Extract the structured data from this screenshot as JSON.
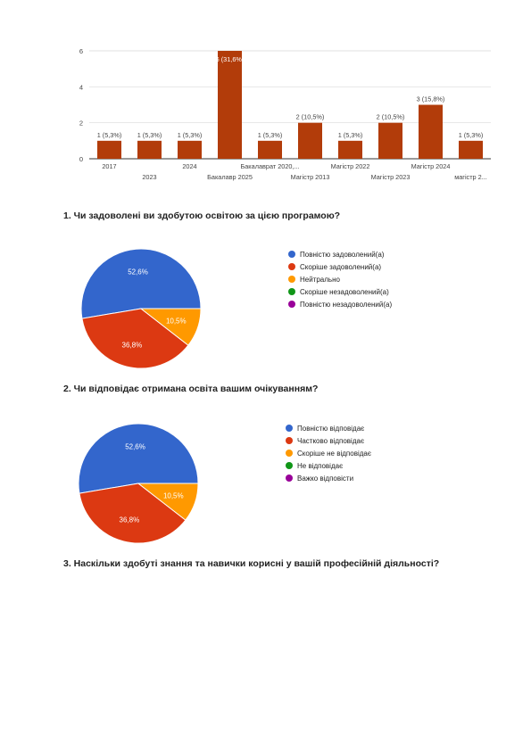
{
  "chart_data": [
    {
      "type": "bar",
      "categories": [
        "2017",
        "2023",
        "2024",
        "Бакалавр 2025",
        "Бакалаврат 2020,...",
        "Магістр 2013",
        "Магістр 2022",
        "Магістр 2023",
        "Магістр 2024",
        "магістр 2..."
      ],
      "values": [
        1,
        1,
        1,
        6,
        1,
        2,
        1,
        2,
        3,
        1
      ],
      "data_labels": [
        "1 (5,3%)",
        "1 (5,3%)",
        "1 (5,3%)",
        "6 (31,6%)",
        "1 (5,3%)",
        "2 (10,5%)",
        "1 (5,3%)",
        "2 (10,5%)",
        "3 (15,8%)",
        "1 (5,3%)"
      ],
      "yticks": [
        "0",
        "2",
        "4",
        "6"
      ],
      "ylim": [
        0,
        6
      ],
      "grid": true,
      "color": "#B23C0A"
    },
    {
      "type": "pie",
      "labels": [
        "Повністю задоволений(а)",
        "Скоріше задоволений(а)",
        "Нейтрально",
        "Скоріше незадоволений(а)",
        "Повністю незадоволений(а)"
      ],
      "values": [
        52.6,
        36.8,
        10.5,
        0,
        0
      ],
      "data_labels": [
        "52,6%",
        "36,8%",
        "10,5%",
        "",
        ""
      ],
      "colors": [
        "#3366CC",
        "#DC3912",
        "#FF9900",
        "#109618",
        "#990099"
      ],
      "legend": "right"
    },
    {
      "type": "pie",
      "labels": [
        "Повністю відповідає",
        "Частково відповідає",
        "Скоріше не відповідає",
        "Не відповідає",
        "Важко відповісти"
      ],
      "values": [
        52.6,
        36.8,
        10.5,
        0,
        0
      ],
      "data_labels": [
        "52,6%",
        "36,8%",
        "10,5%",
        "",
        ""
      ],
      "colors": [
        "#3366CC",
        "#DC3912",
        "#FF9900",
        "#109618",
        "#990099"
      ],
      "legend": "right"
    }
  ],
  "questions": {
    "q1": "1. Чи задоволені ви здобутою освітою за цією програмою?",
    "q2": "2. Чи відповідає отримана освіта вашим очікуванням?",
    "q3": "3. Наскільки здобуті знання та навички корисні у вашій професійній діяльності?"
  }
}
